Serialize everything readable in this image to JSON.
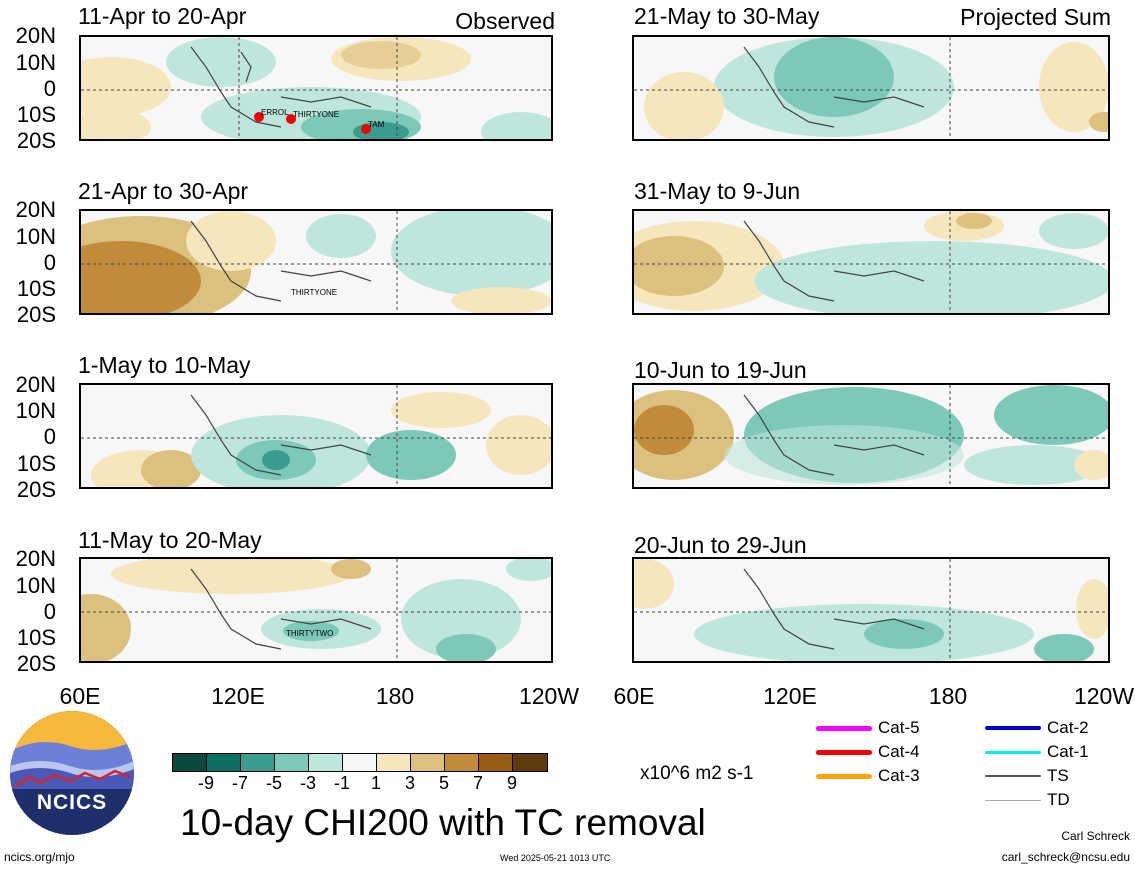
{
  "panels": [
    {
      "id": "p1",
      "title": "11-Apr to 20-Apr",
      "tag": "Observed",
      "storms": [
        "ERROL",
        "THIRTYONE",
        "TAM"
      ]
    },
    {
      "id": "p2",
      "title": "21-Apr to 30-Apr",
      "tag": "",
      "storms": [
        "THIRTYONE"
      ]
    },
    {
      "id": "p3",
      "title": "1-May to 10-May",
      "tag": "",
      "storms": []
    },
    {
      "id": "p4",
      "title": "11-May to 20-May",
      "tag": "",
      "storms": [
        "THIRTYTWO"
      ]
    },
    {
      "id": "p5",
      "title": "21-May to 30-May",
      "tag": "Projected Sum",
      "storms": []
    },
    {
      "id": "p6",
      "title": "31-May to 9-Jun",
      "tag": "",
      "storms": []
    },
    {
      "id": "p7",
      "title": "10-Jun to 19-Jun",
      "tag": "",
      "storms": []
    },
    {
      "id": "p8",
      "title": "20-Jun to 29-Jun",
      "tag": "",
      "storms": []
    }
  ],
  "lat_labels": [
    "20N",
    "10N",
    "0",
    "10S",
    "20S"
  ],
  "lon_labels": [
    "60E",
    "120E",
    "180",
    "120W"
  ],
  "colorbar": {
    "colors": [
      "#0a4a3e",
      "#0e6e62",
      "#3a9c8e",
      "#7cc9b9",
      "#bfe6dc",
      "#f6f6f6",
      "#f6e6bc",
      "#dcc07e",
      "#c08b3a",
      "#9a5c14",
      "#5e3a0c"
    ],
    "ticks": [
      "-9",
      "-7",
      "-5",
      "-3",
      "-1",
      "1",
      "3",
      "5",
      "7",
      "9"
    ],
    "units": "x10^6 m2 s-1"
  },
  "title": "10-day CHI200 with TC removal",
  "legend": [
    {
      "label": "Cat-5",
      "color": "#ff00ff"
    },
    {
      "label": "Cat-4",
      "color": "#ee0000"
    },
    {
      "label": "Cat-3",
      "color": "#ffa500"
    },
    {
      "label": "Cat-2",
      "color": "#0000cc"
    },
    {
      "label": "Cat-1",
      "color": "#00eeee"
    },
    {
      "label": "TS",
      "color": "#555555"
    },
    {
      "label": "TD",
      "color": "#aaaaaa"
    }
  ],
  "logo_text": "NCICS",
  "footer": {
    "site": "ncics.org/mjo",
    "timestamp": "Wed 2025-05-21 1013 UTC",
    "author": "Carl Schreck",
    "email": "carl_schreck@ncsu.edu"
  }
}
